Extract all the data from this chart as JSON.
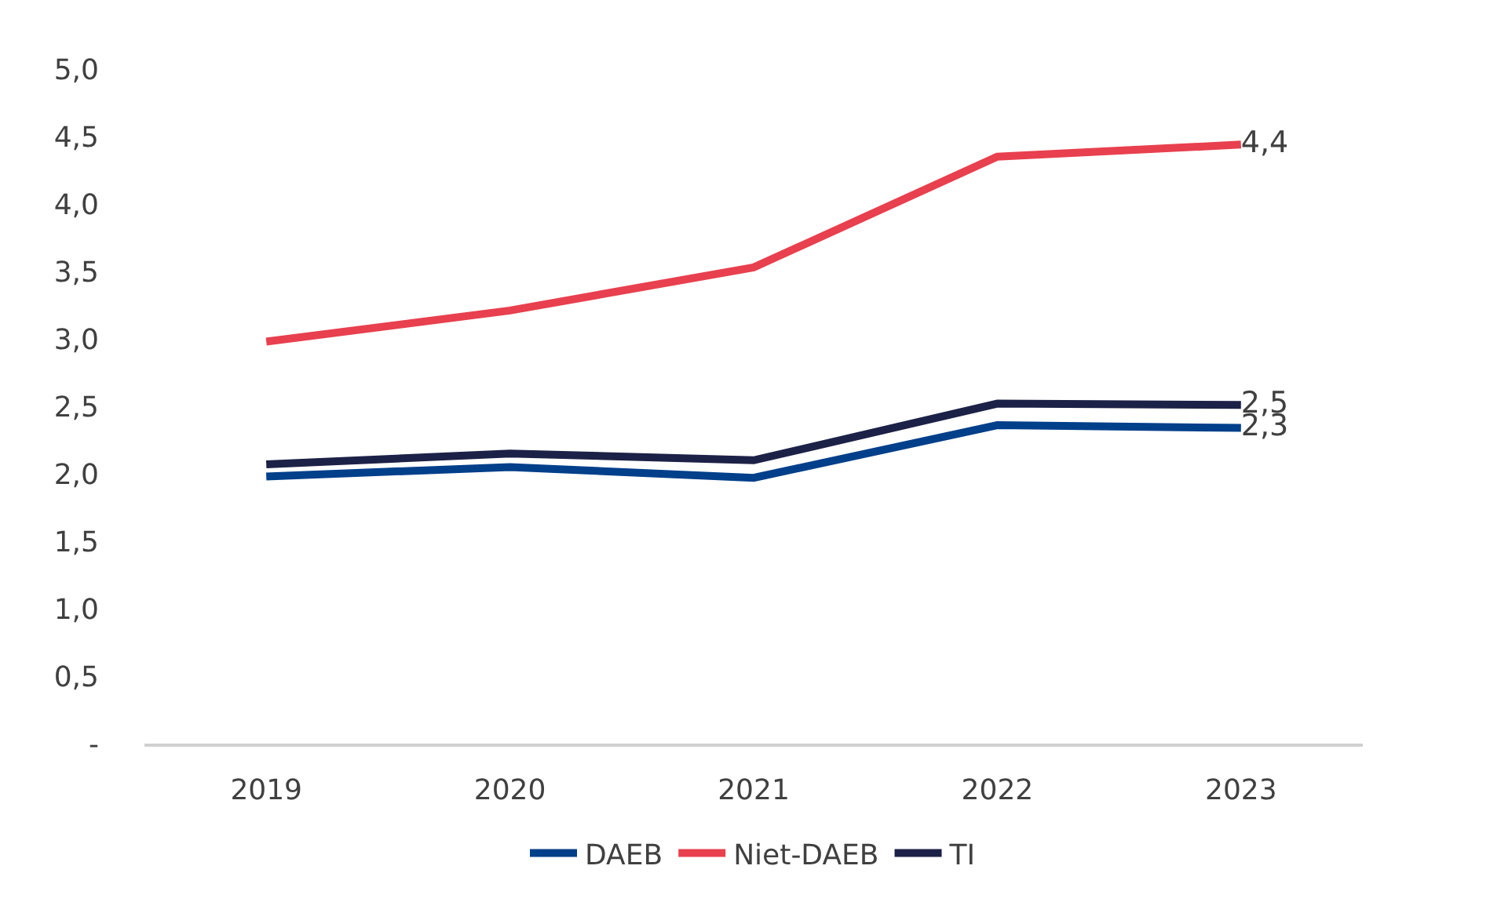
{
  "chart_data": {
    "type": "line",
    "categories": [
      "2019",
      "2020",
      "2021",
      "2022",
      "2023"
    ],
    "series": [
      {
        "name": "DAEB",
        "color": "#003f8a",
        "values": [
          1.98,
          2.05,
          1.97,
          2.36,
          2.34
        ],
        "value_labels": [
          null,
          null,
          null,
          null,
          "2,3"
        ]
      },
      {
        "name": "Niet-DAEB",
        "color": "#e8404e",
        "values": [
          2.98,
          3.21,
          3.53,
          4.35,
          4.44
        ],
        "value_labels": [
          null,
          null,
          null,
          null,
          "4,4"
        ]
      },
      {
        "name": "TI",
        "color": "#1c2147",
        "values": [
          2.07,
          2.15,
          2.1,
          2.52,
          2.51
        ],
        "value_labels": [
          null,
          null,
          null,
          null,
          "2,5"
        ]
      }
    ],
    "ylim": [
      0,
      5
    ],
    "yticks": [
      {
        "value": 0,
        "label": "-"
      },
      {
        "value": 0.5,
        "label": "0,5"
      },
      {
        "value": 1,
        "label": "1,0"
      },
      {
        "value": 1.5,
        "label": "1,5"
      },
      {
        "value": 2,
        "label": "2,0"
      },
      {
        "value": 2.5,
        "label": "2,5"
      },
      {
        "value": 3,
        "label": "3,0"
      },
      {
        "value": 3.5,
        "label": "3,5"
      },
      {
        "value": 4,
        "label": "4,0"
      },
      {
        "value": 4.5,
        "label": "4,5"
      },
      {
        "value": 5,
        "label": "5,0"
      }
    ],
    "grid": false,
    "legend": "bottom",
    "marker": "none",
    "line_style": "solid"
  }
}
